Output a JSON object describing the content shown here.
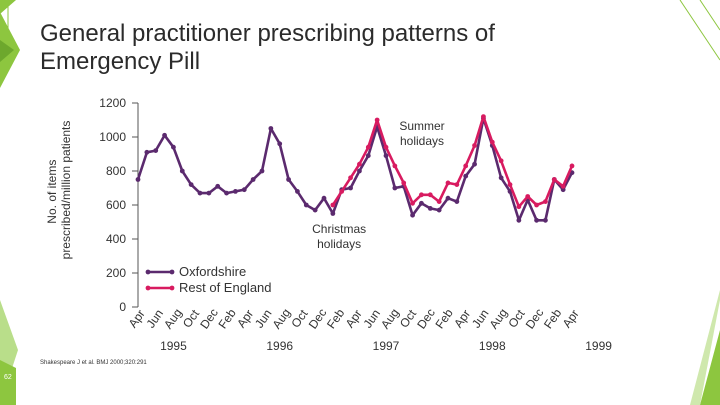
{
  "slide": {
    "title_line1": "General practitioner prescribing patterns of",
    "title_line2": "Emergency Pill",
    "citation": "Shakespeare J et al. BMJ 2000;320:291",
    "slide_number": "62",
    "accent_color": "#8dc63f"
  },
  "chart_data": {
    "type": "line",
    "title": "General practitioner prescribing patterns of Emergency Pill",
    "ylabel": "No. of items prescribed/million patients",
    "xlabel": "",
    "ylim": [
      0,
      1200
    ],
    "yticks": [
      0,
      200,
      400,
      600,
      800,
      1000,
      1200
    ],
    "month_labels": [
      "Apr",
      "Jun",
      "Aug",
      "Oct",
      "Dec",
      "Feb",
      "Apr",
      "Jun",
      "Aug",
      "Oct",
      "Dec",
      "Feb",
      "Apr",
      "Jun",
      "Aug",
      "Oct",
      "Dec",
      "Feb",
      "Apr",
      "Jun",
      "Aug",
      "Oct",
      "Dec",
      "Feb",
      "Apr"
    ],
    "year_labels": [
      {
        "label": "1995",
        "month_index": 4
      },
      {
        "label": "1996",
        "month_index": 16
      },
      {
        "label": "1997",
        "month_index": 28
      },
      {
        "label": "1998",
        "month_index": 40
      },
      {
        "label": "1999",
        "month_index": 52
      }
    ],
    "annotations": [
      {
        "text_line1": "Summer",
        "text_line2": "holidays",
        "month_index": 28,
        "value": 1070
      },
      {
        "text_line1": "Christmas",
        "text_line2": "holidays",
        "month_index": 20,
        "value": 590
      }
    ],
    "legend": [
      "Oxfordshire",
      "Rest of England"
    ],
    "series": [
      {
        "name": "Oxfordshire",
        "color": "#5b2a6e",
        "values": [
          750,
          910,
          920,
          1010,
          940,
          800,
          720,
          670,
          670,
          710,
          670,
          680,
          690,
          750,
          800,
          1050,
          960,
          750,
          680,
          600,
          570,
          640,
          550,
          690,
          700,
          800,
          890,
          1060,
          890,
          700,
          710,
          540,
          610,
          580,
          570,
          640,
          620,
          770,
          840,
          1110,
          950,
          760,
          680,
          510,
          630,
          510,
          510,
          750,
          690,
          790
        ]
      },
      {
        "name": "Rest of England",
        "color": "#d81b60",
        "values": [
          null,
          null,
          null,
          null,
          null,
          null,
          null,
          null,
          null,
          null,
          null,
          null,
          null,
          null,
          null,
          null,
          null,
          null,
          null,
          null,
          null,
          null,
          600,
          680,
          760,
          840,
          940,
          1100,
          940,
          830,
          730,
          610,
          660,
          660,
          620,
          730,
          720,
          830,
          950,
          1120,
          970,
          860,
          720,
          590,
          650,
          600,
          620,
          750,
          710,
          830
        ]
      }
    ]
  }
}
